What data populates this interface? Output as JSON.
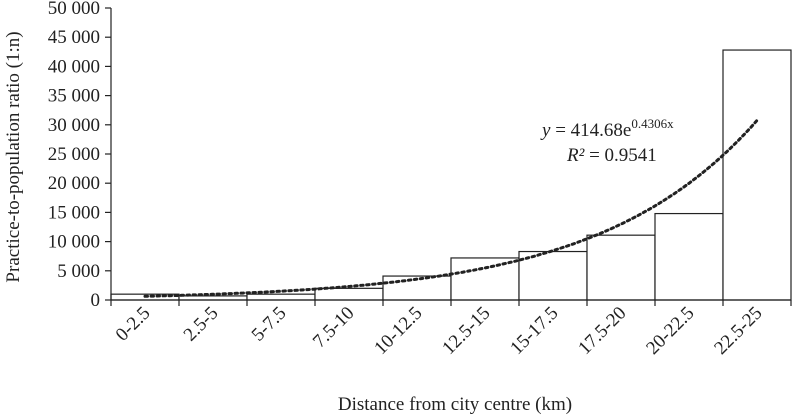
{
  "chart_data": {
    "type": "bar",
    "title": "",
    "xlabel": "Distance from city centre (km)",
    "ylabel": "Practice-to-population ratio (1:n)",
    "categories": [
      "0-2.5",
      "2.5-5",
      "5-7.5",
      "7.5-10",
      "10-12.5",
      "12.5-15",
      "15-17.5",
      "17.5-20",
      "20-22.5",
      "22.5-25"
    ],
    "values": [
      1000,
      700,
      1000,
      2000,
      4100,
      7200,
      8300,
      11100,
      14800,
      42800
    ],
    "ylim": [
      0,
      50000
    ],
    "yticks": [
      0,
      5000,
      10000,
      15000,
      20000,
      25000,
      30000,
      35000,
      40000,
      45000,
      50000
    ],
    "ytick_labels": [
      "0",
      "5 000",
      "10 000",
      "15 000",
      "20 000",
      "25 000",
      "30 000",
      "35 000",
      "40 000",
      "45 000",
      "50 000"
    ],
    "grid": false,
    "bar_fill": "#ffffff",
    "bar_stroke": "#222222",
    "trendline": {
      "type": "exponential",
      "coef_a": 414.68,
      "coef_b": 0.4306,
      "r2": 0.9541,
      "equation_y": "y",
      "equation_mid": " = 414.68e",
      "equation_exp": "0.4306x",
      "r2_label": "R²",
      "r2_value": " = 0.9541",
      "style": "dotted"
    }
  }
}
